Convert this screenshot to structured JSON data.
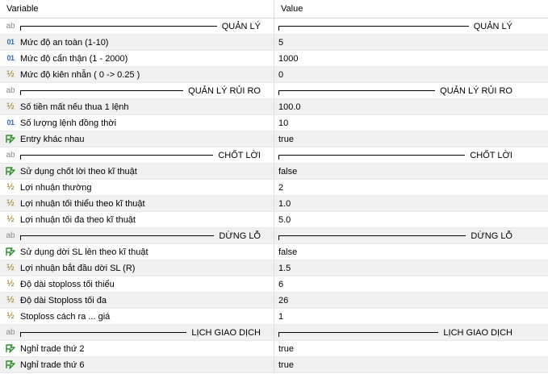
{
  "header": {
    "variable": "Variable",
    "value": "Value"
  },
  "rows": [
    {
      "icon": "ab",
      "name": "QUẢN LÝ",
      "value": "QUẢN LÝ",
      "separator": true
    },
    {
      "icon": "01",
      "name": "Mức độ an toàn (1-10)",
      "value": "5"
    },
    {
      "icon": "01",
      "name": "Mức độ cẩn thận (1 - 2000)",
      "value": "1000"
    },
    {
      "icon": "½",
      "name": "Mức độ kiên nhẫn ( 0 -> 0.25 )",
      "value": "0"
    },
    {
      "icon": "ab",
      "name": "QUẢN LÝ RỦI RO",
      "value": "QUẢN LÝ RỦI RO",
      "separator": true
    },
    {
      "icon": "½",
      "name": "Số tiền mất nếu thua 1 lệnh",
      "value": "100.0"
    },
    {
      "icon": "01",
      "name": "Số lượng lệnh đồng thời",
      "value": "10"
    },
    {
      "icon": "bool",
      "name": "Entry khác nhau",
      "value": "true"
    },
    {
      "icon": "ab",
      "name": "CHỐT LỜI",
      "value": "CHỐT LỜI",
      "separator": true
    },
    {
      "icon": "bool",
      "name": "Sử dụng chốt lời theo kĩ thuật",
      "value": "false"
    },
    {
      "icon": "½",
      "name": "Lợi nhuận thường",
      "value": "2"
    },
    {
      "icon": "½",
      "name": "Lợi nhuận tối thiểu theo kĩ thuật",
      "value": "1.0"
    },
    {
      "icon": "½",
      "name": "Lợi nhuận tối đa theo kĩ thuật",
      "value": "5.0"
    },
    {
      "icon": "ab",
      "name": "DỪNG LỖ",
      "value": "DỪNG LỖ",
      "separator": true
    },
    {
      "icon": "bool",
      "name": "Sử dụng dời SL lên theo kĩ thuật",
      "value": "false"
    },
    {
      "icon": "½",
      "name": "Lợi nhuận bắt đầu dời SL (R)",
      "value": "1.5"
    },
    {
      "icon": "½",
      "name": "Độ dài stoploss tối thiểu",
      "value": "6"
    },
    {
      "icon": "½",
      "name": "Độ dài Stoploss tối đa",
      "value": "26"
    },
    {
      "icon": "½",
      "name": "Stoploss cách ra ... giá",
      "value": "1"
    },
    {
      "icon": "ab",
      "name": "LỊCH GIAO DỊCH",
      "value": "LỊCH GIAO DỊCH",
      "separator": true
    },
    {
      "icon": "bool",
      "name": "Nghỉ trade thứ 2",
      "value": "true"
    },
    {
      "icon": "bool",
      "name": "Nghỉ trade thứ 6",
      "value": "true"
    }
  ]
}
